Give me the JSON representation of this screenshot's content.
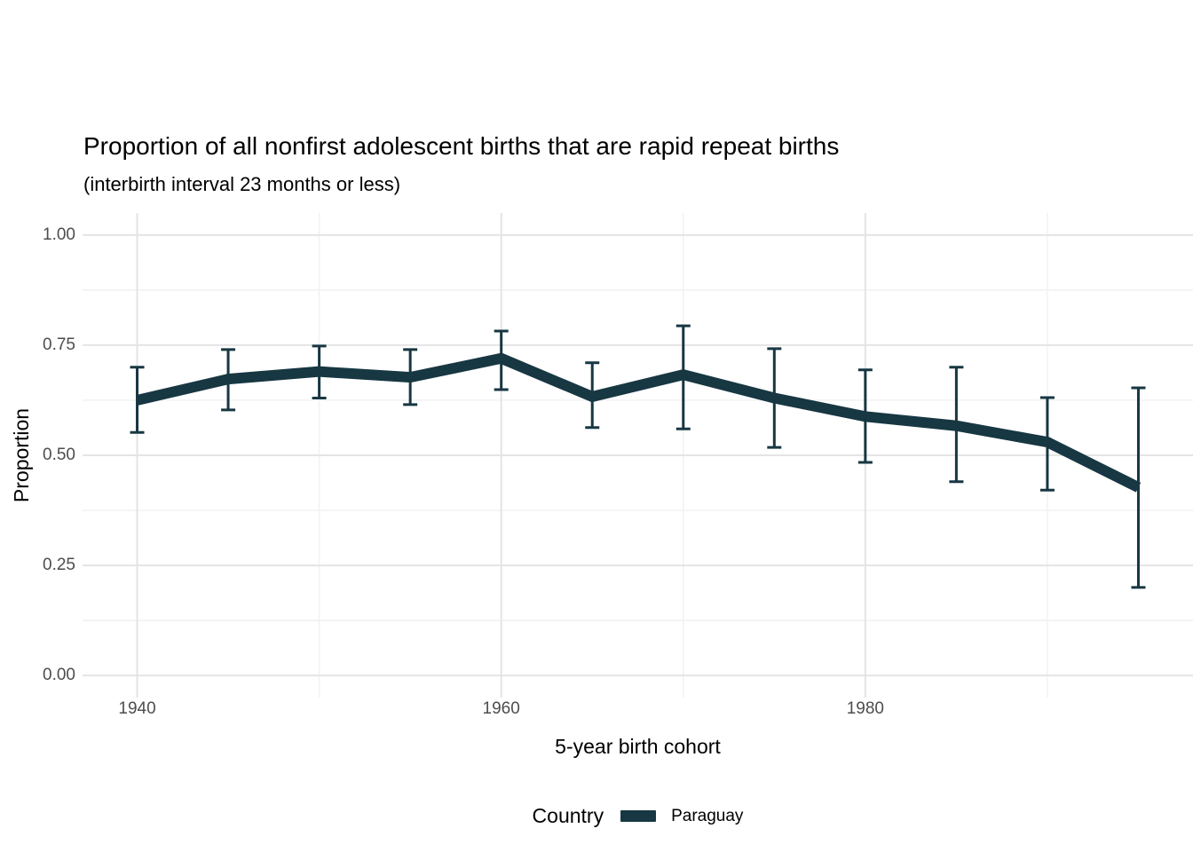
{
  "chart": {
    "title": "Proportion of all nonfirst adolescent births that are rapid repeat births",
    "subtitle": "(interbirth interval 23 months or less)"
  },
  "legend": {
    "title": "Country",
    "items": [
      {
        "label": "Paraguay",
        "color": "#173742"
      }
    ]
  },
  "colors": {
    "series": "#173742",
    "grid_major": "#e4e4e4",
    "grid_minor": "#f1f1f1",
    "tick_text": "#4d4d4d",
    "background": "#ffffff"
  },
  "chart_data": {
    "type": "line",
    "title": "Proportion of all nonfirst adolescent births that are rapid repeat births",
    "subtitle": "(interbirth interval 23 months or less)",
    "xlabel": "5-year birth cohort",
    "ylabel": "Proportion",
    "x": [
      1940,
      1945,
      1950,
      1955,
      1960,
      1965,
      1970,
      1975,
      1980,
      1985,
      1990,
      1995
    ],
    "series": [
      {
        "name": "Paraguay",
        "color": "#173742",
        "values": [
          0.625,
          0.673,
          0.69,
          0.677,
          0.72,
          0.633,
          0.683,
          0.63,
          0.588,
          0.567,
          0.53,
          0.427
        ],
        "ymin": [
          0.552,
          0.603,
          0.63,
          0.615,
          0.649,
          0.563,
          0.56,
          0.518,
          0.484,
          0.44,
          0.421,
          0.2
        ],
        "ymax": [
          0.7,
          0.74,
          0.748,
          0.74,
          0.782,
          0.71,
          0.794,
          0.742,
          0.694,
          0.7,
          0.631,
          0.653
        ]
      }
    ],
    "error_bars": true,
    "x_ticks": [
      1940,
      1960,
      1980
    ],
    "x_tick_labels": [
      "1940",
      "1960",
      "1980"
    ],
    "x_minor_ticks": [
      1950,
      1970,
      1990
    ],
    "y_ticks": [
      0.0,
      0.25,
      0.5,
      0.75,
      1.0
    ],
    "y_tick_labels": [
      "0.00",
      "0.25",
      "0.50",
      "0.75",
      "1.00"
    ],
    "y_minor_ticks": [
      0.125,
      0.375,
      0.625,
      0.875
    ],
    "xlim": [
      1937,
      1998
    ],
    "ylim": [
      -0.05,
      1.05
    ],
    "grid": true,
    "legend_position": "bottom"
  }
}
